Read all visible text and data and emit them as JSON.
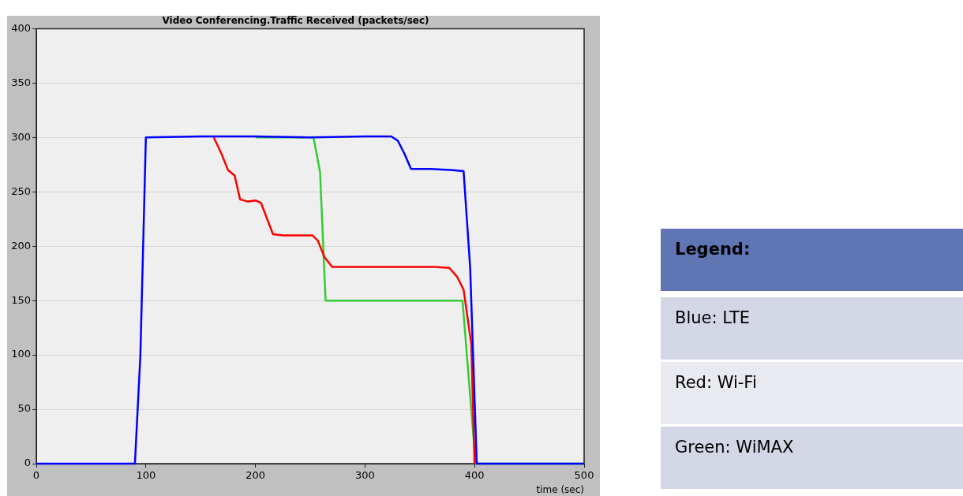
{
  "chart_data": {
    "type": "line",
    "title": "Video Conferencing.Traffic Received (packets/sec)",
    "xlabel": "time (sec)",
    "legend_title": "Legend:",
    "legend": "right",
    "xlim": [
      0,
      500
    ],
    "xticks": [
      0,
      100,
      200,
      300,
      400,
      500
    ],
    "ylim": [
      0,
      400
    ],
    "yticks": [
      0,
      50,
      100,
      150,
      200,
      250,
      300,
      350,
      400
    ],
    "grid": "y",
    "marker": "none",
    "line_style": "solid",
    "series": [
      {
        "name": "Blue: LTE",
        "color": "#0000ff",
        "x": [
          0,
          90,
          95,
          100,
          150,
          200,
          250,
          300,
          324,
          330,
          336,
          342,
          360,
          380,
          390,
          396,
          402,
          500
        ],
        "values": [
          0,
          0,
          100,
          300,
          301,
          301,
          300,
          301,
          301,
          297,
          285,
          271,
          271,
          270,
          269,
          180,
          0,
          0
        ]
      },
      {
        "name": "Red: Wi-Fi",
        "color": "#ff0000",
        "x": [
          162,
          169,
          175,
          181,
          186,
          193,
          200,
          205,
          216,
          225,
          252,
          257,
          263,
          270,
          300,
          364,
          377,
          384,
          390,
          397,
          400
        ],
        "values": [
          300,
          285,
          270,
          265,
          243,
          241,
          242,
          240,
          211,
          210,
          210,
          205,
          190,
          181,
          181,
          181,
          180,
          172,
          160,
          110,
          0
        ]
      },
      {
        "name": "Green: WiMAX",
        "color": "#33cc33",
        "x": [
          200,
          253,
          259,
          264,
          300,
          350,
          389,
          401,
          500
        ],
        "values": [
          300,
          300,
          268,
          150,
          150,
          150,
          150,
          0,
          0
        ]
      }
    ]
  }
}
